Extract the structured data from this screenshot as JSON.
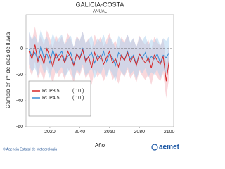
{
  "chart_data": {
    "type": "line",
    "title": "GALICIA-COSTA",
    "subtitle": "ANUAL",
    "x_label": "Año",
    "y_label": "Cambio en nº de días de lluvia",
    "x": [
      2006,
      2008,
      2010,
      2012,
      2014,
      2016,
      2018,
      2020,
      2022,
      2024,
      2026,
      2028,
      2030,
      2032,
      2034,
      2036,
      2038,
      2040,
      2042,
      2044,
      2046,
      2048,
      2050,
      2052,
      2054,
      2056,
      2058,
      2060,
      2062,
      2064,
      2066,
      2068,
      2070,
      2072,
      2074,
      2076,
      2078,
      2080,
      2082,
      2084,
      2086,
      2088,
      2090,
      2092,
      2094,
      2096,
      2098,
      2100
    ],
    "series": [
      {
        "name": "RCP8.5",
        "count_label": "( 10 )",
        "color": "#d62728",
        "band_color": "#f4b8bf",
        "values": [
          -2,
          -8,
          3,
          -10,
          -4,
          -12,
          0,
          -6,
          -14,
          -3,
          -9,
          -5,
          -11,
          -2,
          -7,
          -13,
          -4,
          -8,
          -1,
          -10,
          -6,
          -15,
          -3,
          -9,
          -5,
          -12,
          -7,
          -2,
          -11,
          -8,
          -14,
          -5,
          -9,
          -3,
          -10,
          -6,
          -13,
          -4,
          -8,
          -11,
          -7,
          -15,
          -5,
          -9,
          -12,
          -6,
          -25,
          -9
        ],
        "upper": [
          12,
          6,
          17,
          4,
          10,
          2,
          14,
          8,
          0,
          11,
          5,
          9,
          3,
          12,
          7,
          1,
          10,
          6,
          13,
          4,
          8,
          -1,
          11,
          5,
          9,
          2,
          7,
          12,
          3,
          6,
          0,
          9,
          5,
          11,
          4,
          8,
          1,
          10,
          6,
          3,
          7,
          -1,
          9,
          5,
          2,
          8,
          -11,
          5
        ],
        "lower": [
          -15,
          -21,
          -10,
          -23,
          -17,
          -25,
          -13,
          -19,
          -27,
          -16,
          -22,
          -18,
          -24,
          -15,
          -20,
          -26,
          -17,
          -21,
          -14,
          -23,
          -19,
          -28,
          -16,
          -22,
          -18,
          -25,
          -20,
          -15,
          -24,
          -21,
          -27,
          -18,
          -22,
          -16,
          -23,
          -19,
          -26,
          -17,
          -21,
          -24,
          -20,
          -28,
          -18,
          -22,
          -25,
          -19,
          -38,
          -22
        ]
      },
      {
        "name": "RCP4.5",
        "count_label": "( 10 )",
        "color": "#3a8fd6",
        "band_color": "#b3d4ee",
        "values": [
          0,
          -6,
          -3,
          -9,
          2,
          -7,
          -4,
          -11,
          -1,
          -8,
          -5,
          -2,
          -10,
          -6,
          -3,
          -12,
          -4,
          -7,
          0,
          -9,
          -6,
          -3,
          -11,
          -5,
          -8,
          -2,
          -10,
          -4,
          -7,
          -13,
          -3,
          -6,
          -9,
          -2,
          -8,
          -5,
          -12,
          -4,
          -7,
          -3,
          -10,
          -6,
          -8,
          -4,
          -11,
          -5,
          -7,
          -3
        ],
        "upper": [
          13,
          7,
          10,
          4,
          15,
          6,
          9,
          2,
          12,
          5,
          8,
          11,
          3,
          7,
          10,
          1,
          9,
          6,
          13,
          4,
          7,
          10,
          2,
          8,
          5,
          11,
          3,
          9,
          6,
          0,
          10,
          7,
          4,
          11,
          5,
          8,
          1,
          9,
          6,
          10,
          3,
          7,
          5,
          9,
          2,
          8,
          6,
          10
        ],
        "lower": [
          -12,
          -18,
          -15,
          -21,
          -10,
          -19,
          -16,
          -23,
          -13,
          -20,
          -17,
          -14,
          -22,
          -18,
          -15,
          -24,
          -16,
          -19,
          -12,
          -21,
          -18,
          -15,
          -23,
          -17,
          -20,
          -14,
          -22,
          -16,
          -19,
          -25,
          -15,
          -18,
          -21,
          -14,
          -20,
          -17,
          -24,
          -16,
          -19,
          -15,
          -22,
          -18,
          -20,
          -16,
          -23,
          -17,
          -19,
          -15
        ]
      }
    ],
    "xlim": [
      2004,
      2103
    ],
    "xticks": [
      2020,
      2040,
      2060,
      2080,
      2100
    ],
    "ylim": [
      -60,
      26
    ],
    "yticks": [
      -60,
      -40,
      -20,
      0
    ],
    "hline": 0,
    "legend": "lower left",
    "credit": "© Agencia Estatal de Meteorología",
    "logo": "aemet"
  }
}
